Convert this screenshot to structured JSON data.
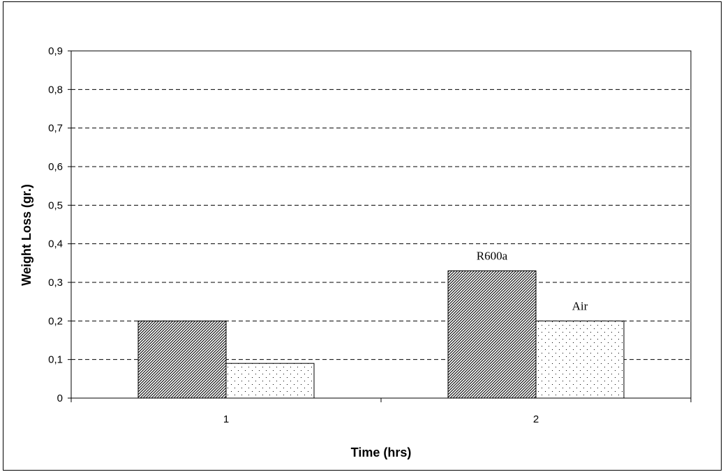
{
  "chart_data": {
    "type": "bar",
    "xlabel": "Time (hrs)",
    "ylabel": "Weight Loss (gr.)",
    "categories": [
      "1",
      "2"
    ],
    "series": [
      {
        "name": "R600a",
        "values": [
          0.2,
          0.33
        ],
        "pattern": "diagonal-hatch"
      },
      {
        "name": "Air",
        "values": [
          0.09,
          0.2
        ],
        "pattern": "dots"
      }
    ],
    "ylim": [
      0,
      0.9
    ],
    "yticks": [
      0,
      0.1,
      0.2,
      0.3,
      0.4,
      0.5,
      0.6,
      0.7,
      0.8,
      0.9
    ],
    "ytick_labels": [
      "0",
      "0,1",
      "0,2",
      "0,3",
      "0,4",
      "0,5",
      "0,6",
      "0,7",
      "0,8",
      "0,9"
    ],
    "grid": "horizontal-dashed",
    "legend": "none (series labels placed above the bars of category 2)"
  },
  "colors": {
    "bar_stroke": "#000000",
    "background": "#ffffff",
    "grid": "#000000"
  }
}
